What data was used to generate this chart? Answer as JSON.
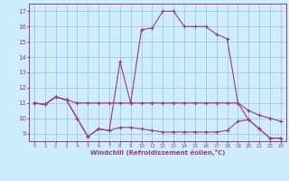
{
  "xlabel": "Windchill (Refroidissement éolien,°C)",
  "background_color": "#cceeff",
  "grid_color": "#aabbcc",
  "line_color": "#993399",
  "xlim": [
    -0.5,
    23.5
  ],
  "ylim": [
    8.5,
    17.5
  ],
  "xticks": [
    0,
    1,
    2,
    3,
    4,
    5,
    6,
    7,
    8,
    9,
    10,
    11,
    12,
    13,
    14,
    15,
    16,
    17,
    18,
    19,
    20,
    21,
    22,
    23
  ],
  "yticks": [
    9,
    10,
    11,
    12,
    13,
    14,
    15,
    16,
    17
  ],
  "line1_x": [
    0,
    1,
    2,
    3,
    4,
    5,
    6,
    7,
    8,
    9,
    10,
    11,
    12,
    13,
    14,
    15,
    16,
    17,
    18,
    19,
    20,
    21,
    22,
    23
  ],
  "line1_y": [
    11.0,
    10.9,
    11.4,
    11.2,
    10.0,
    8.8,
    9.3,
    9.2,
    13.7,
    11.0,
    15.8,
    15.9,
    17.0,
    17.0,
    16.0,
    16.0,
    16.0,
    15.5,
    15.2,
    11.0,
    9.9,
    9.3,
    8.7,
    8.7
  ],
  "line2_x": [
    0,
    1,
    2,
    3,
    4,
    5,
    6,
    7,
    8,
    9,
    10,
    11,
    12,
    13,
    14,
    15,
    16,
    17,
    18,
    19,
    20,
    21,
    22,
    23
  ],
  "line2_y": [
    11.0,
    10.9,
    11.4,
    11.2,
    11.0,
    11.0,
    11.0,
    11.0,
    11.0,
    11.0,
    11.0,
    11.0,
    11.0,
    11.0,
    11.0,
    11.0,
    11.0,
    11.0,
    11.0,
    11.0,
    10.5,
    10.2,
    10.0,
    9.8
  ],
  "line3_x": [
    0,
    1,
    2,
    3,
    4,
    5,
    6,
    7,
    8,
    9,
    10,
    11,
    12,
    13,
    14,
    15,
    16,
    17,
    18,
    19,
    20,
    21,
    22,
    23
  ],
  "line3_y": [
    11.0,
    10.9,
    11.4,
    11.2,
    10.0,
    8.8,
    9.3,
    9.2,
    9.4,
    9.4,
    9.3,
    9.2,
    9.1,
    9.1,
    9.1,
    9.1,
    9.1,
    9.1,
    9.2,
    9.8,
    9.9,
    9.3,
    8.7,
    8.7
  ]
}
